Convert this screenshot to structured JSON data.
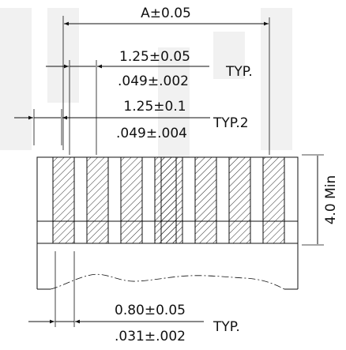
{
  "colors": {
    "ink": "#111111",
    "watermark": "#f1f1f1",
    "background": "#ffffff"
  },
  "dimensions": {
    "overall_width": "A±0.05",
    "pitch_metric": "1.25±0.05",
    "pitch_inch": ".049±.002",
    "pitch_note": "TYP.",
    "pitch2_metric": "1.25±0.1",
    "pitch2_inch": ".049±.004",
    "pitch2_note": "TYP.2",
    "pin_height": "4.0 Min",
    "pin_width_metric": "0.80±0.05",
    "pin_width_inch": ".031±.002",
    "pin_width_note": "TYP."
  },
  "pins": {
    "left_group_count": 4,
    "right_group_count": 4
  }
}
